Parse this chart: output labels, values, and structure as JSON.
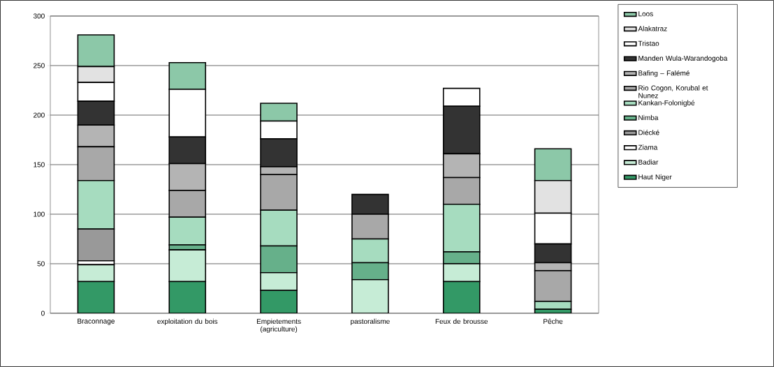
{
  "chart_data": {
    "type": "bar",
    "stacked": true,
    "categories": [
      "Braconnage",
      "exploitation du bois",
      "Empietements (agriculture)",
      "pastoralisme",
      "Feux de brousse",
      "Pêche"
    ],
    "series": [
      {
        "name": "Haut Niger",
        "color": "#339966",
        "values": [
          32,
          32,
          23,
          null,
          32,
          4
        ]
      },
      {
        "name": "Badiar",
        "color": "#c6ecd6",
        "values": [
          17,
          32,
          18,
          34,
          18,
          null
        ]
      },
      {
        "name": "Ziama",
        "color": "#ffffff",
        "values": [
          4,
          null,
          null,
          null,
          null,
          null
        ]
      },
      {
        "name": "Diécké",
        "color": "#999999",
        "values": [
          32,
          null,
          null,
          null,
          null,
          null
        ]
      },
      {
        "name": "Nimba",
        "color": "#66b08a",
        "values": [
          null,
          5,
          27,
          17,
          12,
          null
        ]
      },
      {
        "name": "Kankan-Folonigbé",
        "color": "#a6dcbf",
        "values": [
          49,
          28,
          36,
          24,
          48,
          8
        ]
      },
      {
        "name": "Rio Cogon, Korubal et Nunez",
        "color": "#a8a8a8",
        "values": [
          34,
          27,
          36,
          25,
          27,
          31
        ]
      },
      {
        "name": "Bafing – Falémé",
        "color": "#b4b4b4",
        "values": [
          22,
          27,
          8,
          null,
          24,
          8
        ]
      },
      {
        "name": "Manden Wula-Warandogoba",
        "color": "#333333",
        "values": [
          24,
          27,
          28,
          20,
          48,
          19
        ]
      },
      {
        "name": "Tristao",
        "color": "#ffffff",
        "values": [
          19,
          48,
          18,
          null,
          18,
          31
        ]
      },
      {
        "name": "Alakatraz",
        "color": "#e2e2e2",
        "values": [
          16,
          null,
          null,
          null,
          null,
          33
        ]
      },
      {
        "name": "Loos",
        "color": "#8cc8a8",
        "values": [
          32,
          27,
          18,
          null,
          null,
          32
        ]
      }
    ],
    "ylim": [
      0,
      300
    ],
    "yticks": [
      0,
      50,
      100,
      150,
      200,
      250,
      300
    ],
    "grid": "y",
    "legend": "right"
  }
}
